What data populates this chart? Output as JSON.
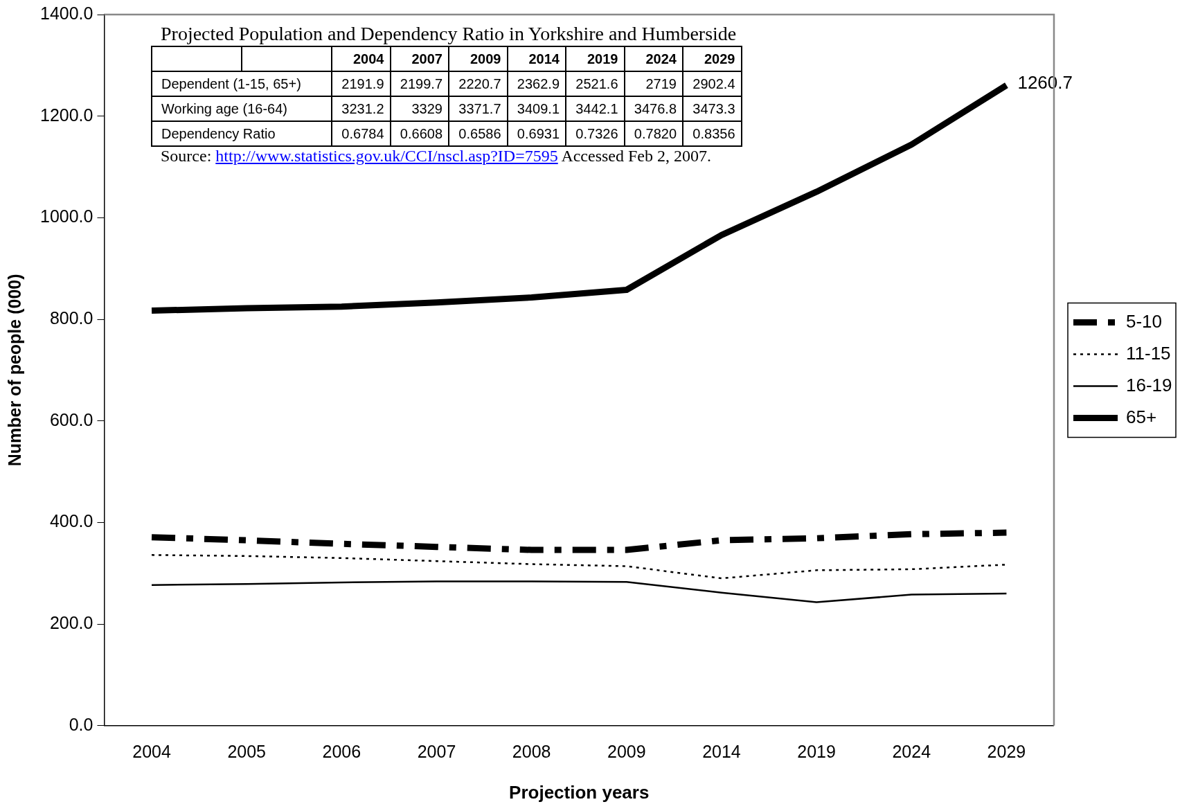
{
  "chart_data": [
    {
      "type": "line",
      "xlabel": "Projection years",
      "ylabel": "Number of people (000)",
      "categories": [
        "2004",
        "2005",
        "2006",
        "2007",
        "2008",
        "2009",
        "2014",
        "2019",
        "2024",
        "2029"
      ],
      "series": [
        {
          "name": "5-10",
          "color": "#000000",
          "line_style": "dashed",
          "values": [
            371,
            365,
            358,
            352,
            346,
            346,
            365,
            369,
            377,
            380
          ]
        },
        {
          "name": "11-15",
          "color": "#000000",
          "line_style": "dotted",
          "values": [
            336,
            334,
            330,
            324,
            318,
            314,
            290,
            306,
            308,
            317
          ]
        },
        {
          "name": "16-19",
          "color": "#000000",
          "line_style": "solid",
          "values": [
            277,
            279,
            282,
            284,
            284,
            283,
            262,
            243,
            258,
            260
          ]
        },
        {
          "name": "65+",
          "color": "#000000",
          "line_style": "solid",
          "values": [
            817,
            822,
            825,
            833,
            843,
            858,
            966,
            1051,
            1144,
            1260.7
          ],
          "value_labels": [
            null,
            null,
            null,
            null,
            null,
            null,
            null,
            null,
            null,
            "1260.7"
          ]
        }
      ],
      "ylim": [
        0,
        1400
      ],
      "yticks": [
        {
          "value": 0,
          "label": "0.0"
        },
        {
          "value": 200,
          "label": "200.0"
        },
        {
          "value": 400,
          "label": "400.0"
        },
        {
          "value": 600,
          "label": "600.0"
        },
        {
          "value": 800,
          "label": "800.0"
        },
        {
          "value": 1000,
          "label": "1000.0"
        },
        {
          "value": 1200,
          "label": "1200.0"
        },
        {
          "value": 1400,
          "label": "1400.0"
        }
      ],
      "grid": false,
      "legend": "right",
      "marker": "none"
    },
    {
      "type": "heatmap",
      "title": "Projected Population and Dependency Ratio in Yorkshire and Humberside",
      "categories": [
        "2004",
        "2007",
        "2009",
        "2014",
        "2019",
        "2024",
        "2029"
      ],
      "y_categories": [
        "Dependent (1-15, 65+)",
        "Working age (16-64)",
        "Dependency Ratio"
      ],
      "cells": [
        [
          2191.9,
          2199.7,
          2220.7,
          2362.9,
          2521.6,
          2719,
          2902.4
        ],
        [
          3231.2,
          3329,
          3371.7,
          3409.1,
          3442.1,
          3476.8,
          3473.3
        ],
        [
          0.6784,
          0.6608,
          0.6586,
          0.6931,
          0.7326,
          0.782,
          0.8356
        ]
      ],
      "cell_labels": [
        [
          "2191.9",
          "2199.7",
          "2220.7",
          "2362.9",
          "2521.6",
          "2719",
          "2902.4"
        ],
        [
          "3231.2",
          "3329",
          "3371.7",
          "3409.1",
          "3442.1",
          "3476.8",
          "3473.3"
        ],
        [
          "0.6784",
          "0.6608",
          "0.6586",
          "0.6931",
          "0.7326",
          "0.7820",
          "0.8356"
        ]
      ],
      "annotations": [
        "Source: http://www.statistics.gov.uk/CCI/nscl.asp?ID=7595 Accessed Feb 2, 2007."
      ]
    }
  ]
}
